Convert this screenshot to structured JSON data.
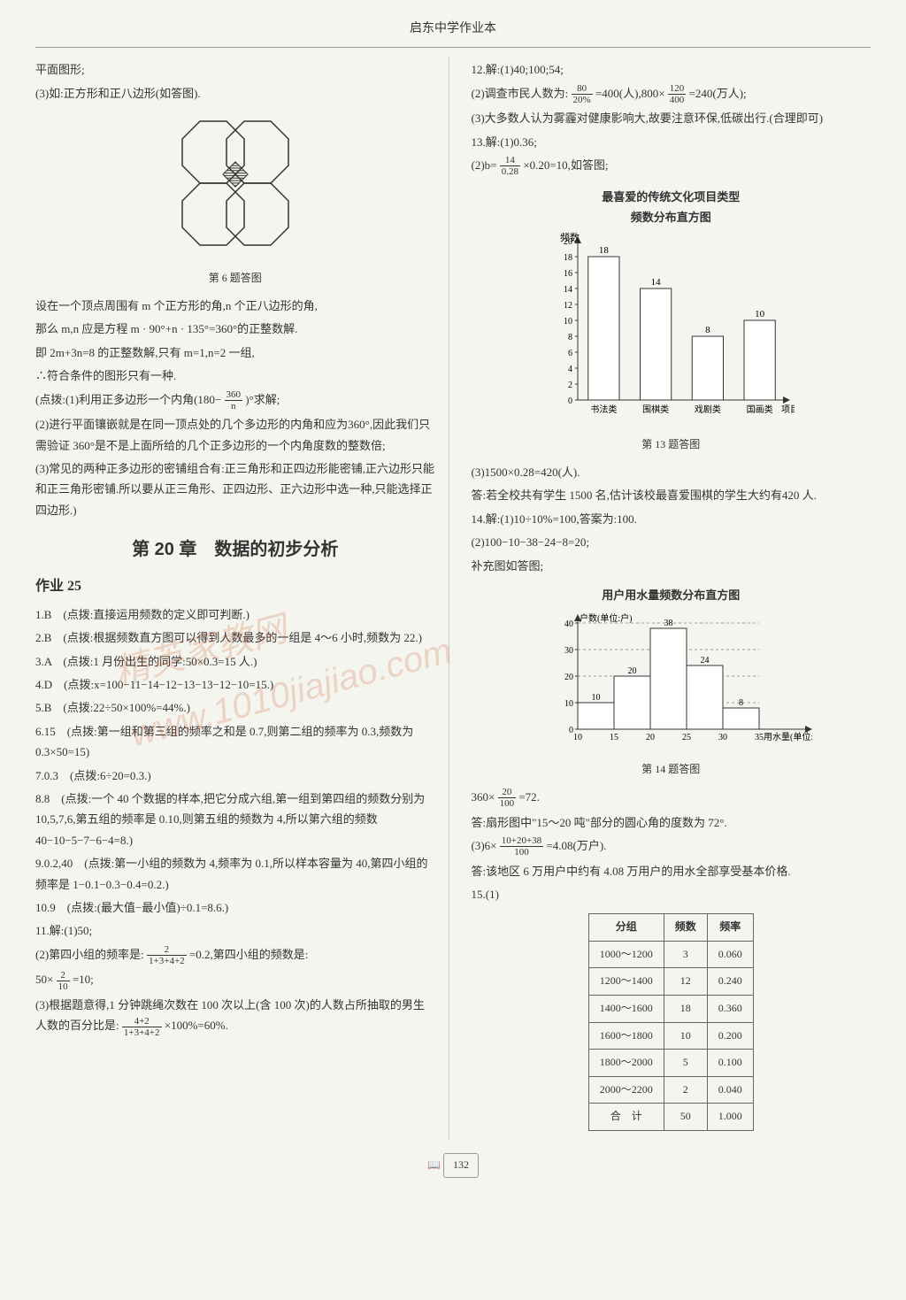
{
  "page_title": "启东中学作业本",
  "page_number": "132",
  "watermark": "精英家教网 www.1010jiajiao.com",
  "left_col": {
    "lines_1": [
      "平面图形;",
      "(3)如:正方形和正八边形(如答图)."
    ],
    "fig6_caption": "第 6 题答图",
    "lines_2": [
      "设在一个顶点周围有 m 个正方形的角,n 个正八边形的角,",
      "那么 m,n 应是方程 m · 90°+n · 135°=360°的正整数解.",
      "即 2m+3n=8 的正整数解,只有 m=1,n=2 一组,",
      "∴符合条件的图形只有一种."
    ],
    "hint_1_prefix": "(点拨:(1)利用正多边形一个内角(180−",
    "hint_1_frac_num": "360",
    "hint_1_frac_den": "n",
    "hint_1_suffix": ")°求解;",
    "lines_3": [
      "(2)进行平面镶嵌就是在同一顶点处的几个多边形的内角和应为360°,因此我们只需验证 360°是不是上面所给的几个正多边形的一个内角度数的整数倍;",
      "(3)常见的两种正多边形的密铺组合有:正三角形和正四边形能密铺,正六边形只能和正三角形密铺.所以要从正三角形、正四边形、正六边形中选一种,只能选择正四边形.)"
    ],
    "chapter_title": "第 20 章　数据的初步分析",
    "hw_title": "作业 25",
    "answers": [
      "1.B　(点拨:直接运用频数的定义即可判断.)",
      "2.B　(点拨:根据频数直方图可以得到人数最多的一组是 4～6 小时,频数为 22.)",
      "3.A　(点拨:1 月份出生的同学:50×0.3=15 人.)",
      "4.D　(点拨:x=100−11−14−12−13−13−12−10=15.)",
      "5.B　(点拨:22÷50×100%=44%.)",
      "6.15　(点拨:第一组和第三组的频率之和是 0.7,则第二组的频率为 0.3,频数为 0.3×50=15)",
      "7.0.3　(点拨:6÷20=0.3.)",
      "8.8　(点拨:一个 40 个数据的样本,把它分成六组,第一组到第四组的频数分别为 10,5,7,6,第五组的频率是 0.10,则第五组的频数为 4,所以第六组的频数 40−10−5−7−6−4=8.)",
      "9.0.2,40　(点拨:第一小组的频数为 4,频率为 0.1,所以样本容量为 40,第四小组的频率是 1−0.1−0.3−0.4=0.2.)",
      "10.9　(点拨:(最大值−最小值)÷0.1=8.6.)",
      "11.解:(1)50;"
    ],
    "q11_2_prefix": "(2)第四小组的频率是:",
    "q11_2_frac_num": "2",
    "q11_2_frac_den": "1+3+4+2",
    "q11_2_mid": "=0.2,第四小组的频数是:",
    "q11_2b_prefix": "50×",
    "q11_2b_frac_num": "2",
    "q11_2b_frac_den": "10",
    "q11_2b_suffix": "=10;",
    "q11_3_prefix": "(3)根据题意得,1 分钟跳绳次数在 100 次以上(含 100 次)的人数占所抽取的男生人数的百分比是:",
    "q11_3_frac_num": "4+2",
    "q11_3_frac_den": "1+3+4+2",
    "q11_3_suffix": "×100%=60%."
  },
  "right_col": {
    "lines_1": [
      "12.解:(1)40;100;54;"
    ],
    "q12_2_prefix": "(2)调查市民人数为:",
    "q12_2_frac_num": "80",
    "q12_2_frac_den": "20%",
    "q12_2_mid": "=400(人),800×",
    "q12_2_frac2_num": "120",
    "q12_2_frac2_den": "400",
    "q12_2_suffix": "=240(万人);",
    "lines_2": [
      "(3)大多数人认为雾霾对健康影响大,故要注意环保,低碳出行.(合理即可)",
      "13.解:(1)0.36;"
    ],
    "q13_2_prefix": "(2)b=",
    "q13_2_frac_num": "14",
    "q13_2_frac_den": "0.28",
    "q13_2_suffix": "×0.20=10,如答图;",
    "chart1": {
      "title": "最喜爱的传统文化项目类型\n频数分布直方图",
      "ylabel": "频数",
      "xlabel_suffix": "项目类型",
      "categories": [
        "书法类",
        "围棋类",
        "戏剧类",
        "国画类"
      ],
      "values": [
        18,
        14,
        8,
        10
      ],
      "y_ticks": [
        0,
        2,
        4,
        6,
        8,
        10,
        12,
        14,
        16,
        18,
        20
      ],
      "bar_color": "#ffffff",
      "border_color": "#333333"
    },
    "fig13_caption": "第 13 题答图",
    "lines_3": [
      "(3)1500×0.28=420(人).",
      "答:若全校共有学生 1500 名,估计该校最喜爱围棋的学生大约有420 人.",
      "14.解:(1)10÷10%=100,答案为:100.",
      "(2)100−10−38−24−8=20;",
      "补充图如答图;"
    ],
    "chart2": {
      "title": "用户用水量频数分布直方图",
      "ylabel": "户数(单位:户)",
      "xlabel": "用水量(单位:吨)",
      "x_boundaries": [
        10,
        15,
        20,
        25,
        30,
        35
      ],
      "values": [
        10,
        20,
        38,
        24,
        8
      ],
      "y_ticks": [
        0,
        10,
        20,
        30,
        40
      ],
      "bar_color": "#ffffff",
      "border_color": "#333333"
    },
    "fig14_caption": "第 14 题答图",
    "q14_calc_prefix": "360×",
    "q14_calc_frac_num": "20",
    "q14_calc_frac_den": "100",
    "q14_calc_suffix": "=72.",
    "lines_4": [
      "答:扇形图中\"15～20 吨\"部分的圆心角的度数为 72°."
    ],
    "q14_3_prefix": "(3)6×",
    "q14_3_frac_num": "10+20+38",
    "q14_3_frac_den": "100",
    "q14_3_suffix": "=4.08(万户).",
    "lines_5": [
      "答:该地区 6 万用户中约有 4.08 万用户的用水全部享受基本价格.",
      "15.(1)"
    ],
    "table": {
      "headers": [
        "分组",
        "频数",
        "频率"
      ],
      "rows": [
        [
          "1000～1200",
          "3",
          "0.060"
        ],
        [
          "1200～1400",
          "12",
          "0.240"
        ],
        [
          "1400～1600",
          "18",
          "0.360"
        ],
        [
          "1600～1800",
          "10",
          "0.200"
        ],
        [
          "1800～2000",
          "5",
          "0.100"
        ],
        [
          "2000～2200",
          "2",
          "0.040"
        ],
        [
          "合　计",
          "50",
          "1.000"
        ]
      ]
    }
  }
}
